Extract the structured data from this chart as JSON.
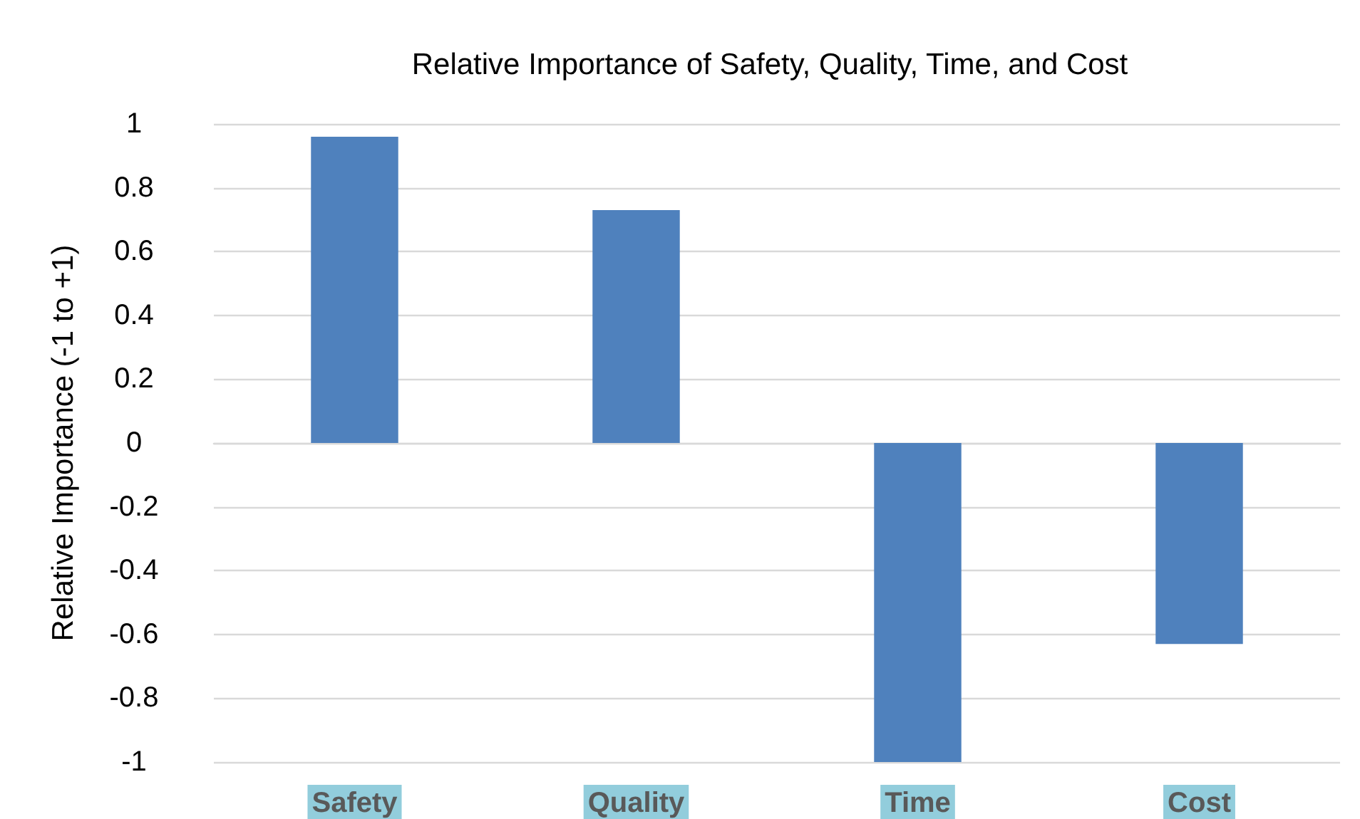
{
  "chart_data": {
    "type": "bar",
    "title": "Relative Importance of Safety, Quality, Time, and Cost",
    "ylabel": "Relative Importance (-1 to +1)",
    "categories": [
      "Safety",
      "Quality",
      "Time",
      "Cost"
    ],
    "values": [
      0.96,
      0.73,
      -1,
      -0.63
    ],
    "color": "#4f81bd",
    "ylim": [
      -1,
      1
    ],
    "yticks": [
      -1,
      -0.8,
      -0.6,
      -0.4,
      -0.2,
      0,
      0.2,
      0.4,
      0.6,
      0.8,
      1
    ],
    "grid": "y"
  }
}
